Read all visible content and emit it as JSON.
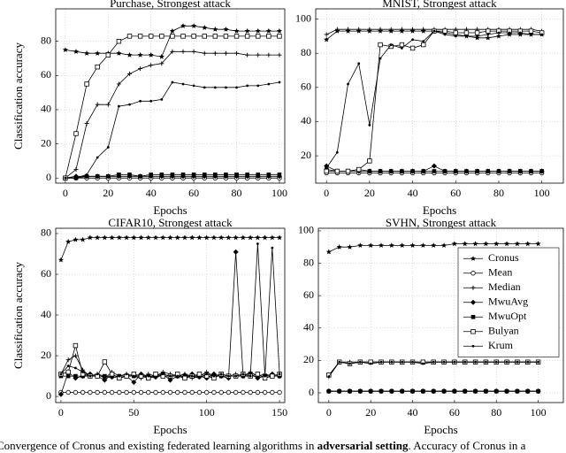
{
  "chart_data": [
    {
      "type": "line",
      "title": "Purchase, Strongest attack",
      "xlabel": "Epochs",
      "ylabel": "Classification accuracy",
      "x": [
        0,
        5,
        10,
        15,
        20,
        25,
        30,
        35,
        40,
        45,
        50,
        55,
        60,
        65,
        70,
        75,
        80,
        85,
        90,
        95,
        100
      ],
      "xlim": [
        -4.5,
        102.5
      ],
      "ylim": [
        -3,
        99
      ],
      "xticks": [
        0,
        20,
        40,
        60,
        80,
        100
      ],
      "yticks": [
        0,
        20,
        40,
        60,
        80
      ],
      "grid": true,
      "series": [
        {
          "color": "#000000",
          "marker": "star",
          "values": [
            75,
            74,
            73,
            73,
            73,
            73,
            72,
            72,
            72,
            71,
            86,
            89,
            89,
            88,
            87,
            87,
            86,
            86,
            86,
            86,
            86
          ]
        },
        {
          "color": "#000000",
          "marker": "circle",
          "values": [
            0,
            0,
            0,
            0,
            0,
            0,
            0,
            0,
            0,
            0,
            0,
            0,
            0,
            0,
            0,
            0,
            0,
            0,
            0,
            0,
            0
          ]
        },
        {
          "color": "#000000",
          "marker": "plus",
          "values": [
            0,
            5,
            32,
            43,
            43,
            55,
            61,
            64,
            66,
            67,
            74,
            74,
            74,
            73,
            73,
            73,
            73,
            72,
            72,
            72,
            72
          ]
        },
        {
          "color": "#000000",
          "marker": "diamond",
          "values": [
            0,
            1,
            1,
            1,
            1,
            1,
            1,
            1,
            1,
            1,
            1,
            1,
            1,
            1,
            1,
            1,
            1,
            1,
            1,
            1,
            1
          ]
        },
        {
          "color": "#000000",
          "marker": "square-filled",
          "values": [
            0,
            0,
            1,
            1,
            1,
            2,
            2,
            1,
            2,
            2,
            2,
            2,
            2,
            2,
            2,
            2,
            2,
            2,
            2,
            2,
            2
          ]
        },
        {
          "color": "#000000",
          "marker": "square",
          "values": [
            0,
            26,
            55,
            65,
            72,
            80,
            83,
            83,
            83,
            83,
            83,
            83,
            83,
            83,
            83,
            83,
            83,
            83,
            83,
            83,
            83
          ]
        },
        {
          "color": "#000000",
          "marker": "dot",
          "values": [
            0,
            0,
            2,
            12,
            18,
            42,
            43,
            45,
            45,
            46,
            56,
            55,
            54,
            53,
            53,
            53,
            53,
            54,
            54,
            55,
            56
          ]
        }
      ]
    },
    {
      "type": "line",
      "title": "MNIST, Strongest attack",
      "xlabel": "Epochs",
      "x": [
        0,
        5,
        10,
        15,
        20,
        25,
        30,
        35,
        40,
        45,
        50,
        55,
        60,
        65,
        70,
        75,
        80,
        85,
        90,
        95,
        100
      ],
      "xlim": [
        -5,
        110
      ],
      "ylim": [
        4,
        106
      ],
      "xticks": [
        0,
        20,
        40,
        60,
        80,
        100
      ],
      "yticks": [
        20,
        40,
        60,
        80,
        100
      ],
      "grid": true,
      "series": [
        {
          "color": "#000000",
          "marker": "star",
          "values": [
            88,
            93,
            93,
            93,
            93,
            93,
            93,
            93,
            93,
            93,
            93,
            92,
            91,
            90,
            89,
            89,
            90,
            91,
            91,
            91,
            91
          ]
        },
        {
          "color": "#000000",
          "marker": "circle",
          "values": [
            10,
            10,
            10,
            10,
            10,
            10,
            10,
            10,
            10,
            10,
            10,
            10,
            10,
            10,
            10,
            10,
            10,
            10,
            10,
            10,
            10
          ]
        },
        {
          "color": "#000000",
          "marker": "plus",
          "values": [
            91,
            94,
            94,
            94,
            94,
            94,
            94,
            94,
            94,
            94,
            94,
            94,
            94,
            94,
            94,
            94,
            94,
            94,
            94,
            94,
            93
          ]
        },
        {
          "color": "#000000",
          "marker": "diamond",
          "values": [
            14,
            11,
            11,
            11,
            11,
            11,
            11,
            11,
            11,
            11,
            14,
            11,
            11,
            11,
            11,
            11,
            11,
            11,
            11,
            11,
            11
          ]
        },
        {
          "color": "#000000",
          "marker": "square-filled",
          "values": [
            12,
            11,
            11,
            12,
            11,
            11,
            11,
            11,
            11,
            11,
            11,
            11,
            11,
            11,
            11,
            11,
            11,
            11,
            11,
            11,
            11
          ]
        },
        {
          "color": "#000000",
          "marker": "square",
          "values": [
            11,
            11,
            11,
            12,
            17,
            85,
            84,
            85,
            83,
            85,
            93,
            93,
            92,
            92,
            92,
            93,
            93,
            93,
            93,
            93,
            92
          ]
        },
        {
          "color": "#000000",
          "marker": "dot",
          "values": [
            13,
            22,
            62,
            74,
            38,
            77,
            85,
            83,
            88,
            87,
            93,
            91,
            90,
            90,
            90,
            91,
            92,
            92,
            92,
            91,
            91
          ]
        }
      ]
    },
    {
      "type": "line",
      "title": "CIFAR10, Strongest attack",
      "xlabel": "Epochs",
      "ylabel": "Classification accuracy",
      "x": [
        0,
        5,
        10,
        15,
        20,
        25,
        30,
        35,
        40,
        45,
        50,
        55,
        60,
        65,
        70,
        75,
        80,
        85,
        90,
        95,
        100,
        105,
        110,
        115,
        120,
        125,
        130,
        135,
        140,
        145,
        150
      ],
      "xlim": [
        -3.6,
        153.6
      ],
      "ylim": [
        -3,
        82.6
      ],
      "xticks": [
        0,
        50,
        100,
        150
      ],
      "yticks": [
        0,
        20,
        40,
        60,
        80
      ],
      "grid": true,
      "series": [
        {
          "color": "#000000",
          "marker": "star",
          "values": [
            67,
            76,
            77,
            77,
            78,
            78,
            78,
            78,
            78,
            78,
            78,
            78,
            78,
            78,
            78,
            78,
            78,
            78,
            78,
            78,
            78,
            78,
            78,
            78,
            78,
            78,
            78,
            78,
            78,
            78,
            78
          ]
        },
        {
          "color": "#000000",
          "marker": "circle",
          "values": [
            2,
            2,
            2,
            2,
            2,
            2,
            2,
            2,
            2,
            2,
            2,
            2,
            2,
            2,
            2,
            2,
            2,
            2,
            2,
            2,
            2,
            2,
            2,
            2,
            2,
            2,
            2,
            2,
            2,
            2,
            2
          ]
        },
        {
          "color": "#000000",
          "marker": "plus",
          "values": [
            11,
            18,
            20,
            13,
            10,
            11,
            9,
            12,
            10,
            11,
            10,
            9,
            11,
            10,
            12,
            11,
            10,
            11,
            9,
            10,
            12,
            10,
            11,
            10,
            11,
            10,
            12,
            10,
            11,
            10,
            11
          ]
        },
        {
          "color": "#000000",
          "marker": "diamond",
          "values": [
            1,
            12,
            9,
            10,
            11,
            10,
            8,
            11,
            9,
            10,
            7,
            11,
            9,
            10,
            11,
            8,
            10,
            9,
            11,
            10,
            9,
            11,
            10,
            9,
            71,
            10,
            11,
            9,
            10,
            11,
            10
          ]
        },
        {
          "color": "#000000",
          "marker": "square-filled",
          "values": [
            10,
            10,
            10,
            10,
            10,
            10,
            10,
            10,
            10,
            10,
            10,
            10,
            10,
            10,
            10,
            10,
            10,
            10,
            10,
            10,
            10,
            10,
            10,
            10,
            10,
            10,
            10,
            10,
            10,
            10,
            10
          ]
        },
        {
          "color": "#000000",
          "marker": "square",
          "values": [
            11,
            12,
            25,
            11,
            10,
            10,
            17,
            11,
            9,
            10,
            11,
            10,
            9,
            11,
            10,
            10,
            11,
            9,
            10,
            11,
            10,
            9,
            11,
            10,
            10,
            11,
            10,
            11,
            9,
            10,
            11
          ]
        },
        {
          "color": "#000000",
          "marker": "dot",
          "values": [
            11,
            15,
            14,
            12,
            10,
            11,
            10,
            9,
            10,
            11,
            10,
            11,
            10,
            9,
            11,
            10,
            10,
            11,
            10,
            9,
            11,
            10,
            11,
            10,
            10,
            11,
            10,
            75,
            10,
            73,
            11
          ]
        }
      ]
    },
    {
      "type": "line",
      "title": "SVHN, Strongest attack",
      "xlabel": "Epochs",
      "x": [
        0,
        5,
        10,
        15,
        20,
        25,
        30,
        35,
        40,
        45,
        50,
        55,
        60,
        65,
        70,
        75,
        80,
        85,
        90,
        95,
        100
      ],
      "xlim": [
        -5,
        112
      ],
      "ylim": [
        -6,
        101.6
      ],
      "xticks": [
        0,
        20,
        40,
        60,
        80,
        100
      ],
      "yticks": [
        0,
        20,
        40,
        60,
        80,
        100
      ],
      "grid": true,
      "legend": "upper right",
      "series": [
        {
          "name": "Cronus",
          "color": "#000000",
          "marker": "star",
          "values": [
            87,
            90,
            90,
            91,
            91,
            91,
            91,
            91,
            91,
            91,
            91,
            91,
            92,
            92,
            92,
            92,
            92,
            92,
            92,
            92,
            92
          ]
        },
        {
          "name": "Mean",
          "color": "#000000",
          "marker": "circle",
          "values": [
            1,
            1,
            1,
            1,
            1,
            1,
            1,
            1,
            1,
            1,
            1,
            1,
            1,
            1,
            1,
            1,
            1,
            1,
            1,
            1,
            1
          ]
        },
        {
          "name": "Median",
          "color": "#000000",
          "marker": "plus",
          "values": [
            10,
            19,
            19,
            19,
            19,
            19,
            19,
            19,
            19,
            19,
            19,
            19,
            19,
            19,
            19,
            19,
            19,
            19,
            19,
            19,
            19
          ]
        },
        {
          "name": "MwuAvg",
          "color": "#000000",
          "marker": "diamond",
          "values": [
            1,
            1,
            1,
            1,
            1,
            1,
            1,
            1,
            1,
            1,
            1,
            1,
            1,
            1,
            1,
            1,
            1,
            1,
            1,
            1,
            1
          ]
        },
        {
          "name": "MwuOpt",
          "color": "#000000",
          "marker": "square-filled",
          "values": [
            1,
            1,
            1,
            1,
            1,
            1,
            1,
            1,
            1,
            1,
            1,
            1,
            1,
            1,
            1,
            1,
            1,
            1,
            1,
            1,
            1
          ]
        },
        {
          "name": "Bulyan",
          "color": "#000000",
          "marker": "square",
          "values": [
            11,
            19,
            18,
            19,
            19,
            19,
            19,
            19,
            19,
            19,
            19,
            19,
            19,
            19,
            19,
            19,
            19,
            19,
            19,
            19,
            19
          ]
        },
        {
          "name": "Krum",
          "color": "#000000",
          "marker": "dot",
          "values": [
            10,
            19,
            18,
            19,
            18,
            19,
            19,
            19,
            19,
            18,
            19,
            19,
            19,
            19,
            19,
            19,
            19,
            19,
            19,
            19,
            19
          ]
        }
      ]
    }
  ],
  "caption": {
    "before": "Convergence of Cronus and existing federated learning algorithms in ",
    "bold": "adversarial setting",
    "after": ". Accuracy of Cronus in a"
  }
}
